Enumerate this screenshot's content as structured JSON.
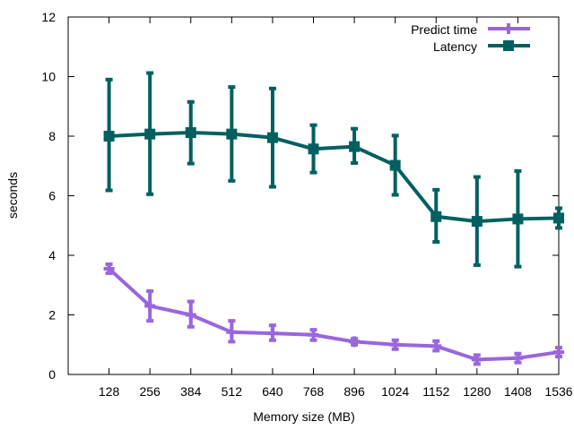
{
  "chart_data": {
    "type": "line",
    "title": "",
    "xlabel": "Memory size (MB)",
    "ylabel": "seconds",
    "x": [
      128,
      256,
      384,
      512,
      640,
      768,
      896,
      1024,
      1152,
      1280,
      1408,
      1536
    ],
    "xticks": [
      "128",
      "256",
      "384",
      "512",
      "640",
      "768",
      "896",
      "1024",
      "1152",
      "1280",
      "1408",
      "1536"
    ],
    "yticks": [
      "0",
      "2",
      "4",
      "6",
      "8",
      "10",
      "12"
    ],
    "xlim": [
      0,
      1536
    ],
    "ylim": [
      0,
      12
    ],
    "grid": false,
    "legend_position": "top-right",
    "series": [
      {
        "name": "Predict time",
        "color": "#9966dd",
        "marker": "plus",
        "values": [
          3.55,
          2.3,
          2.0,
          1.42,
          1.38,
          1.33,
          1.1,
          1.0,
          0.95,
          0.5,
          0.55,
          0.75
        ],
        "err_low": [
          3.4,
          1.8,
          1.6,
          1.1,
          1.15,
          1.15,
          1.0,
          0.85,
          0.8,
          0.35,
          0.4,
          0.6
        ],
        "err_high": [
          3.7,
          2.8,
          2.45,
          1.8,
          1.65,
          1.5,
          1.2,
          1.15,
          1.12,
          0.65,
          0.7,
          0.9
        ]
      },
      {
        "name": "Latency",
        "color": "#006060",
        "marker": "square",
        "values": [
          8.0,
          8.07,
          8.12,
          8.07,
          7.95,
          7.57,
          7.65,
          7.02,
          5.3,
          5.14,
          5.22,
          5.25
        ],
        "err_low": [
          6.18,
          6.05,
          7.08,
          6.5,
          6.3,
          6.78,
          7.1,
          6.03,
          4.45,
          3.67,
          3.62,
          4.92
        ],
        "err_high": [
          9.9,
          10.12,
          9.15,
          9.65,
          9.6,
          8.37,
          8.25,
          8.02,
          6.2,
          6.63,
          6.83,
          5.58
        ]
      }
    ]
  }
}
